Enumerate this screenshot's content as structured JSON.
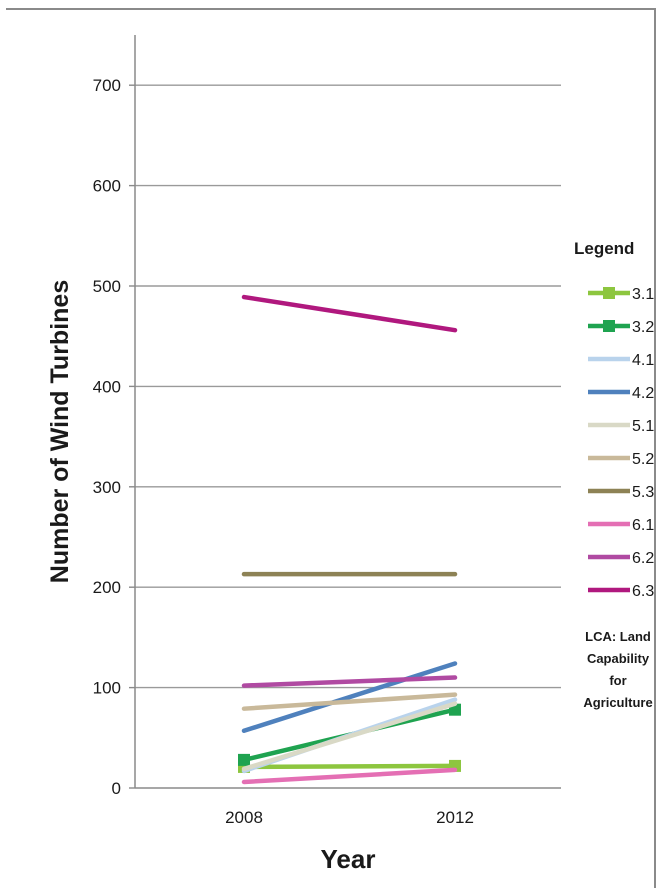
{
  "chart_data": {
    "type": "line",
    "xlabel": "Year",
    "ylabel": "Number of Wind Turbines",
    "categories": [
      "2008",
      "2012"
    ],
    "ylim": [
      0,
      750
    ],
    "yticks": [
      0,
      100,
      200,
      300,
      400,
      500,
      600,
      700
    ],
    "grid": true,
    "legend_title": "Legend",
    "legend_placement": "right",
    "legend_note": [
      "LCA: Land",
      "Capability",
      "for",
      "Agriculture"
    ],
    "series": [
      {
        "name": "3.1",
        "values": [
          21,
          22
        ],
        "color": "#8dc63f",
        "marker": "square"
      },
      {
        "name": "3.2",
        "values": [
          28,
          78
        ],
        "color": "#1fa350",
        "marker": "square"
      },
      {
        "name": "4.1",
        "values": [
          17,
          88
        ],
        "color": "#b9d3ec",
        "marker": "none"
      },
      {
        "name": "4.2",
        "values": [
          57,
          124
        ],
        "color": "#4f81bd",
        "marker": "none"
      },
      {
        "name": "5.1",
        "values": [
          19,
          84
        ],
        "color": "#d9d9c6",
        "marker": "none"
      },
      {
        "name": "5.2",
        "values": [
          79,
          93
        ],
        "color": "#c9b99a",
        "marker": "none"
      },
      {
        "name": "5.3",
        "values": [
          213,
          213
        ],
        "color": "#8d8255",
        "marker": "none"
      },
      {
        "name": "6.1",
        "values": [
          6,
          18
        ],
        "color": "#e46fb4",
        "marker": "none"
      },
      {
        "name": "6.2",
        "values": [
          102,
          110
        ],
        "color": "#b04aa2",
        "marker": "none"
      },
      {
        "name": "6.3",
        "values": [
          489,
          456
        ],
        "color": "#b0187e",
        "marker": "none"
      }
    ]
  }
}
